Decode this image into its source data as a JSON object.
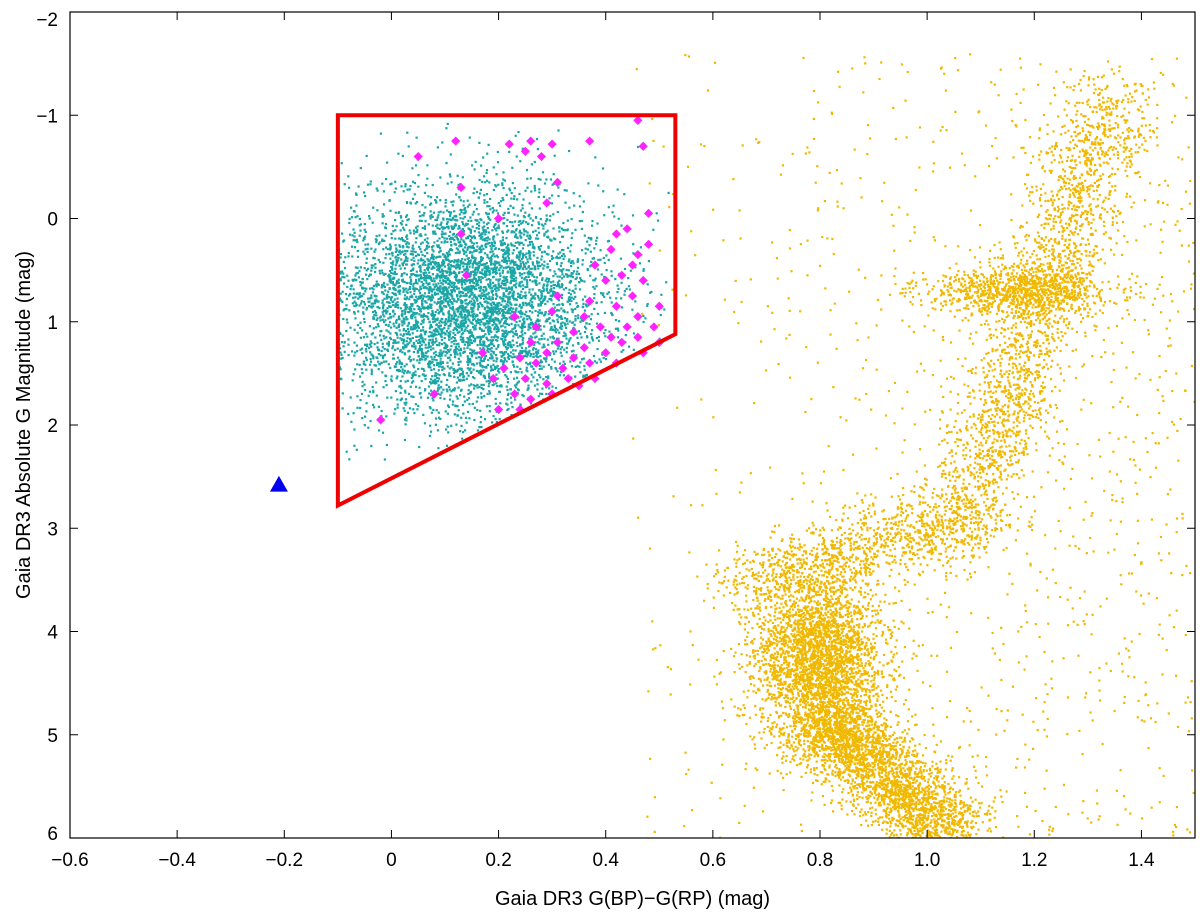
{
  "chart_data": {
    "type": "scatter",
    "title": "",
    "xlabel": "Gaia DR3 G(BP)−G(RP) (mag)",
    "ylabel": "Gaia DR3 Absolute G Magnitude (mag)",
    "xlim": [
      -0.6,
      1.5
    ],
    "ylim": [
      6,
      -2
    ],
    "y_axis_inverted": true,
    "grid": false,
    "legend": "none",
    "x_ticks": [
      "−0.6",
      "−0.4",
      "−0.2",
      "0",
      "0.2",
      "0.4",
      "0.6",
      "0.8",
      "1.0",
      "1.2",
      "1.4"
    ],
    "x_tick_values": [
      -0.6,
      -0.4,
      -0.2,
      0,
      0.2,
      0.4,
      0.6,
      0.8,
      1.0,
      1.2,
      1.4
    ],
    "y_ticks": [
      "−2",
      "−1",
      "0",
      "1",
      "2",
      "3",
      "4",
      "5",
      "6"
    ],
    "y_tick_values": [
      -2,
      -1,
      0,
      1,
      2,
      3,
      4,
      5,
      6
    ],
    "series": [
      {
        "color": "#f0b800",
        "marker": "dot",
        "distribution": [
          {
            "region": "main-sequence turnoff clump",
            "x_center": 0.8,
            "y_center": 4.3,
            "x_spread": 0.06,
            "y_spread": 0.45,
            "count": 3200
          },
          {
            "region": "main-sequence lower tail",
            "x_start": 0.82,
            "y_start": 4.9,
            "x_end": 1.05,
            "y_end": 6.0,
            "count": 2400
          },
          {
            "region": "subgiant branch",
            "x_start": 0.66,
            "y_start": 3.6,
            "x_end": 1.05,
            "y_end": 2.9,
            "count": 900
          },
          {
            "region": "red giant branch",
            "x_start": 1.05,
            "y_start": 3.2,
            "x_end": 1.35,
            "y_end": -1.2,
            "count": 2200
          },
          {
            "region": "red clump",
            "x_center": 1.17,
            "y_center": 0.7,
            "x_spread": 0.09,
            "y_spread": 0.12,
            "count": 900
          },
          {
            "region": "background field",
            "x_range": [
              0.45,
              1.5
            ],
            "y_range": [
              -1.6,
              6.0
            ],
            "count": 1600
          }
        ]
      },
      {
        "color": "#1aa6a6",
        "marker": "dot",
        "distribution": [
          {
            "region": "horizontal branch candidates",
            "x_center": 0.14,
            "y_center": 0.8,
            "x_spread": 0.13,
            "y_spread": 0.55,
            "count": 5200
          }
        ]
      },
      {
        "color": "#ff22ff",
        "marker": "diamond",
        "points": [
          {
            "x": 0.46,
            "y": -0.95
          },
          {
            "x": 0.47,
            "y": -0.7
          },
          {
            "x": 0.37,
            "y": -0.75
          },
          {
            "x": 0.3,
            "y": -0.72
          },
          {
            "x": 0.26,
            "y": -0.75
          },
          {
            "x": 0.28,
            "y": -0.6
          },
          {
            "x": 0.25,
            "y": -0.65
          },
          {
            "x": 0.22,
            "y": -0.72
          },
          {
            "x": 0.12,
            "y": -0.75
          },
          {
            "x": 0.05,
            "y": -0.6
          },
          {
            "x": 0.31,
            "y": -0.35
          },
          {
            "x": 0.29,
            "y": -0.15
          },
          {
            "x": 0.13,
            "y": -0.3
          },
          {
            "x": 0.2,
            "y": 0.0
          },
          {
            "x": 0.48,
            "y": -0.05
          },
          {
            "x": 0.44,
            "y": 0.1
          },
          {
            "x": 0.48,
            "y": 0.25
          },
          {
            "x": 0.42,
            "y": 0.15
          },
          {
            "x": 0.46,
            "y": 0.35
          },
          {
            "x": 0.41,
            "y": 0.3
          },
          {
            "x": 0.13,
            "y": 0.15
          },
          {
            "x": 0.38,
            "y": 0.45
          },
          {
            "x": 0.43,
            "y": 0.55
          },
          {
            "x": 0.47,
            "y": 0.6
          },
          {
            "x": 0.4,
            "y": 0.6
          },
          {
            "x": 0.45,
            "y": 0.75
          },
          {
            "x": 0.5,
            "y": 0.85
          },
          {
            "x": 0.37,
            "y": 0.8
          },
          {
            "x": 0.42,
            "y": 0.85
          },
          {
            "x": 0.36,
            "y": 0.95
          },
          {
            "x": 0.46,
            "y": 0.95
          },
          {
            "x": 0.44,
            "y": 1.05
          },
          {
            "x": 0.49,
            "y": 1.05
          },
          {
            "x": 0.39,
            "y": 1.05
          },
          {
            "x": 0.34,
            "y": 1.1
          },
          {
            "x": 0.41,
            "y": 1.15
          },
          {
            "x": 0.46,
            "y": 1.15
          },
          {
            "x": 0.43,
            "y": 1.2
          },
          {
            "x": 0.36,
            "y": 1.25
          },
          {
            "x": 0.31,
            "y": 1.2
          },
          {
            "x": 0.26,
            "y": 1.2
          },
          {
            "x": 0.29,
            "y": 1.3
          },
          {
            "x": 0.34,
            "y": 1.35
          },
          {
            "x": 0.4,
            "y": 1.3
          },
          {
            "x": 0.37,
            "y": 1.4
          },
          {
            "x": 0.32,
            "y": 1.45
          },
          {
            "x": 0.27,
            "y": 1.4
          },
          {
            "x": 0.24,
            "y": 1.35
          },
          {
            "x": 0.21,
            "y": 1.45
          },
          {
            "x": 0.25,
            "y": 1.55
          },
          {
            "x": 0.29,
            "y": 1.6
          },
          {
            "x": 0.33,
            "y": 1.55
          },
          {
            "x": 0.23,
            "y": 1.7
          },
          {
            "x": 0.26,
            "y": 1.75
          },
          {
            "x": 0.2,
            "y": 1.85
          },
          {
            "x": 0.24,
            "y": 1.85
          },
          {
            "x": 0.19,
            "y": 1.55
          },
          {
            "x": 0.17,
            "y": 1.3
          },
          {
            "x": 0.14,
            "y": 0.55
          },
          {
            "x": 0.3,
            "y": 0.9
          },
          {
            "x": 0.27,
            "y": 1.05
          },
          {
            "x": 0.23,
            "y": 0.95
          },
          {
            "x": 0.38,
            "y": 1.55
          },
          {
            "x": 0.35,
            "y": 1.62
          },
          {
            "x": 0.3,
            "y": 1.7
          },
          {
            "x": 0.42,
            "y": 1.4
          },
          {
            "x": 0.47,
            "y": 1.3
          },
          {
            "x": 0.5,
            "y": 1.2
          },
          {
            "x": -0.02,
            "y": 1.95
          },
          {
            "x": 0.08,
            "y": 1.7
          },
          {
            "x": 0.31,
            "y": 0.75
          },
          {
            "x": 0.45,
            "y": 0.45
          }
        ]
      },
      {
        "color": "#0000ee",
        "marker": "triangle",
        "points": [
          {
            "x": -0.21,
            "y": 2.58
          }
        ]
      }
    ],
    "annotations": [
      {
        "type": "polygon",
        "color": "#ee0000",
        "vertices": [
          [
            -0.1,
            -1.0
          ],
          [
            0.53,
            -1.0
          ],
          [
            0.53,
            1.12
          ],
          [
            -0.1,
            2.78
          ]
        ]
      }
    ]
  }
}
